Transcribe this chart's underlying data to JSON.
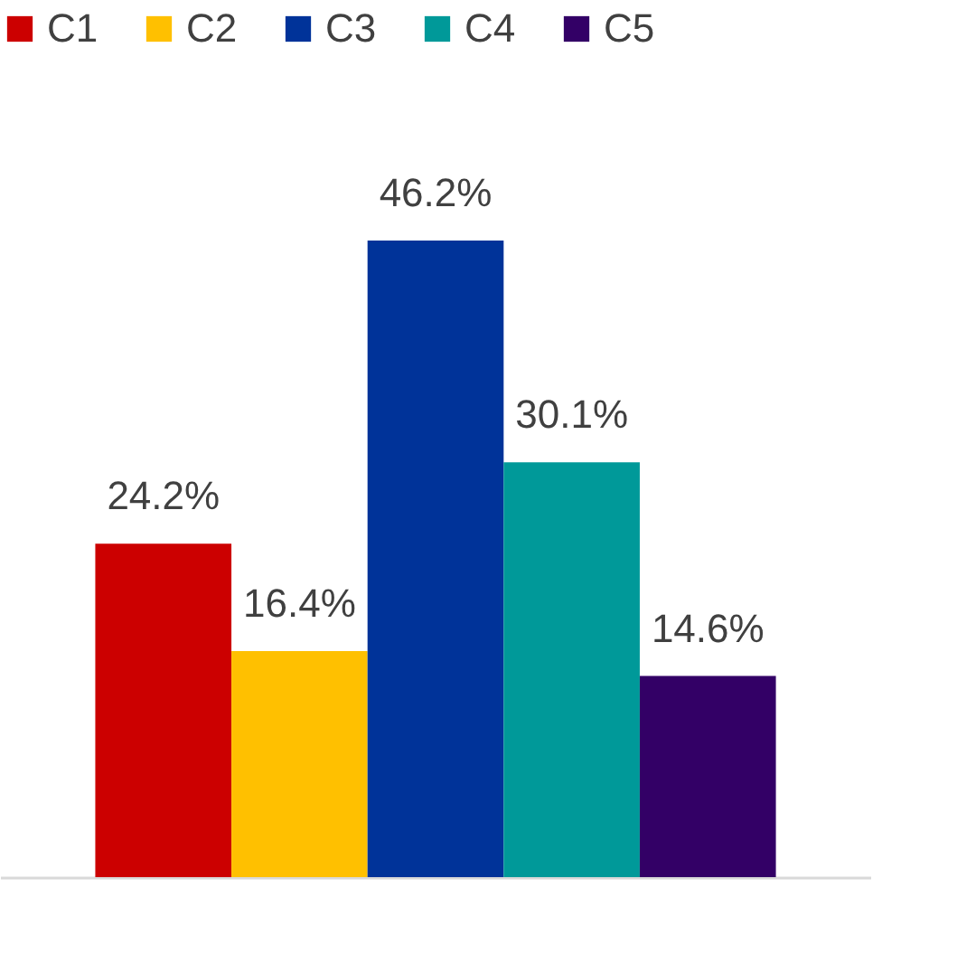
{
  "chart_data": {
    "type": "bar",
    "categories": [
      null
    ],
    "legend": "top",
    "series": [
      {
        "name": "C1",
        "color": "#cc0000",
        "values": [
          24.2
        ],
        "value_labels": [
          "24.2%"
        ]
      },
      {
        "name": "C2",
        "color": "#ffc000",
        "values": [
          16.4
        ],
        "value_labels": [
          "16.4%"
        ]
      },
      {
        "name": "C3",
        "color": "#003399",
        "values": [
          46.2
        ],
        "value_labels": [
          "46.2%"
        ]
      },
      {
        "name": "C4",
        "color": "#009999",
        "values": [
          30.1
        ],
        "value_labels": [
          "30.1%"
        ]
      },
      {
        "name": "C5",
        "color": "#330066",
        "values": [
          14.6
        ],
        "value_labels": [
          "14.6%"
        ]
      }
    ]
  }
}
